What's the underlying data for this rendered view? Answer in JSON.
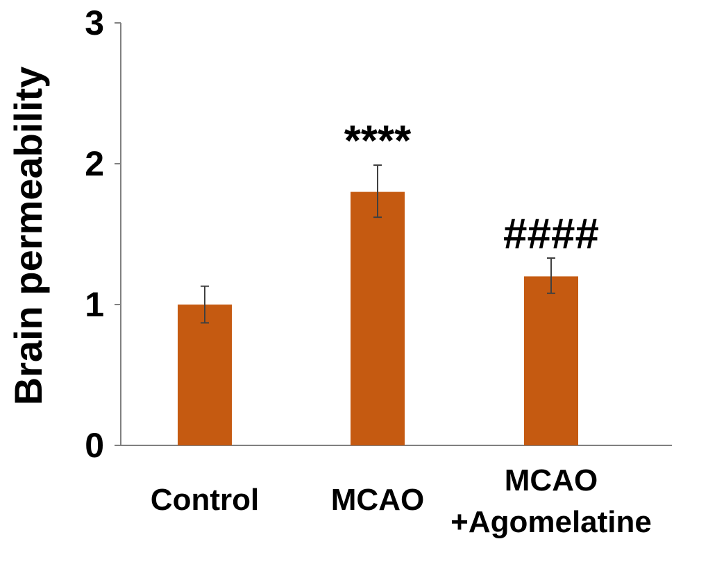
{
  "chart_data": {
    "type": "bar",
    "title": "",
    "xlabel": "",
    "ylabel": "Brain permeability",
    "ylim": [
      0,
      3
    ],
    "yticks": [
      0,
      1,
      2,
      3
    ],
    "grid": false,
    "categories": [
      {
        "lines": [
          "Control"
        ]
      },
      {
        "lines": [
          "MCAO"
        ]
      },
      {
        "lines": [
          "MCAO",
          "+Agomelatine"
        ]
      }
    ],
    "values": [
      1.0,
      1.8,
      1.2
    ],
    "errors": [
      {
        "low": 0.87,
        "high": 1.13
      },
      {
        "low": 1.62,
        "high": 1.99
      },
      {
        "low": 1.08,
        "high": 1.33
      }
    ],
    "annotations": [
      "",
      "****",
      "####"
    ],
    "bar_color": "#C55A11",
    "error_color": "#404040",
    "axis_color": "#808080"
  }
}
